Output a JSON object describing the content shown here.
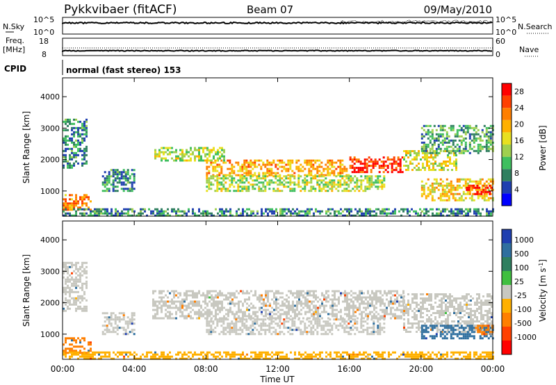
{
  "header": {
    "station": "Pykkvibaer (fitACF)",
    "beam": "Beam 07",
    "date": "09/May/2010"
  },
  "top_panels": {
    "nsky_label": "N.Sky",
    "nsky_ticks": [
      "10^5",
      "10^0"
    ],
    "nsearch_label": "N.Search",
    "nsearch_ticks": [
      "10^5",
      "10^0"
    ],
    "freq_label": "Freq.",
    "freq_unit": "[MHz]",
    "freq_ticks": [
      "18",
      "8"
    ],
    "nave_label": "Nave",
    "nave_ticks": [
      "60",
      "0"
    ],
    "cpid_label": "CPID",
    "cpid_text": "normal (fast stereo) 153"
  },
  "chart_data": [
    {
      "type": "heatmap",
      "name": "power-panel",
      "ylabel": "Slant Range [km]",
      "xlim": [
        "00:00",
        "24:00"
      ],
      "ylim": [
        200,
        4600
      ],
      "y_ticks": [
        "4000",
        "3000",
        "2000",
        "1000"
      ],
      "y_tick_values": [
        4000,
        3000,
        2000,
        1000
      ],
      "colorbar": {
        "label": "Power [dB]",
        "ticks": [
          "28",
          "24",
          "20",
          "16",
          "12",
          "8",
          "4"
        ],
        "tick_values": [
          28,
          24,
          20,
          16,
          12,
          8,
          4
        ],
        "range": [
          0,
          30
        ],
        "colors": [
          "#0000ff",
          "#1f3fb0",
          "#2f7f5f",
          "#3fbf5f",
          "#9fd04f",
          "#e8e020",
          "#ffb000",
          "#ff7f00",
          "#ff4000",
          "#ff0000"
        ]
      },
      "echo_bands": [
        {
          "t": [
            0.0,
            1.3
          ],
          "r": [
            1750,
            3300
          ],
          "power": 8
        },
        {
          "t": [
            0.0,
            1.6
          ],
          "r": [
            400,
            900
          ],
          "power": 22
        },
        {
          "t": [
            2.2,
            4.0
          ],
          "r": [
            1000,
            1700
          ],
          "power": 8
        },
        {
          "t": [
            5.0,
            9.0
          ],
          "r": [
            2000,
            2400
          ],
          "power": 14
        },
        {
          "t": [
            8.0,
            16.0
          ],
          "r": [
            1500,
            2000
          ],
          "power": 20
        },
        {
          "t": [
            16.0,
            19.0
          ],
          "r": [
            1600,
            2100
          ],
          "power": 26
        },
        {
          "t": [
            19.0,
            22.0
          ],
          "r": [
            1700,
            2300
          ],
          "power": 16
        },
        {
          "t": [
            8.0,
            18.0
          ],
          "r": [
            1000,
            1500
          ],
          "power": 14
        },
        {
          "t": [
            20.0,
            24.0
          ],
          "r": [
            700,
            1400
          ],
          "power": 18
        },
        {
          "t": [
            22.5,
            24.0
          ],
          "r": [
            900,
            1200
          ],
          "power": 28
        },
        {
          "t": [
            20.0,
            24.0
          ],
          "r": [
            2200,
            3100
          ],
          "power": 10
        },
        {
          "t": [
            0.0,
            24.0
          ],
          "r": [
            200,
            450
          ],
          "power": 8
        }
      ]
    },
    {
      "type": "heatmap",
      "name": "velocity-panel",
      "ylabel": "Slant Range [km]",
      "xlabel": "Time UT",
      "x_ticks": [
        "00:00",
        "04:00",
        "08:00",
        "12:00",
        "16:00",
        "20:00",
        "00:00"
      ],
      "x_tick_values": [
        0,
        4,
        8,
        12,
        16,
        20,
        24
      ],
      "xlim": [
        "00:00",
        "24:00"
      ],
      "ylim": [
        200,
        4600
      ],
      "y_ticks": [
        "4000",
        "3000",
        "2000",
        "1000"
      ],
      "y_tick_values": [
        4000,
        3000,
        2000,
        1000
      ],
      "colorbar": {
        "label": "Velocity [m s^-1]",
        "ticks": [
          "1000",
          "500",
          "100",
          "25",
          "-25",
          "-100",
          "-500",
          "-1000"
        ],
        "colors": [
          "#1f3fb0",
          "#2f6f9f",
          "#2f7f5f",
          "#3fbf3f",
          "#c8c8c0",
          "#ffb000",
          "#ff7f00",
          "#ff4000",
          "#ff0000"
        ]
      },
      "echo_bands": [
        {
          "t": [
            0.0,
            1.3
          ],
          "r": [
            1750,
            3300
          ],
          "velocity": 0
        },
        {
          "t": [
            0.0,
            1.6
          ],
          "r": [
            400,
            900
          ],
          "velocity": -150
        },
        {
          "t": [
            2.2,
            4.0
          ],
          "r": [
            1000,
            1700
          ],
          "velocity": 0
        },
        {
          "t": [
            5.0,
            19.0
          ],
          "r": [
            1500,
            2400
          ],
          "velocity": 0
        },
        {
          "t": [
            8.0,
            18.0
          ],
          "r": [
            1000,
            1500
          ],
          "velocity": 0
        },
        {
          "t": [
            19.0,
            24.0
          ],
          "r": [
            1100,
            2300
          ],
          "velocity": 0
        },
        {
          "t": [
            20.0,
            24.0
          ],
          "r": [
            900,
            1300
          ],
          "velocity": 300
        },
        {
          "t": [
            23.0,
            24.0
          ],
          "r": [
            1000,
            1300
          ],
          "velocity": -300
        },
        {
          "t": [
            0.0,
            24.0
          ],
          "r": [
            200,
            450
          ],
          "velocity": -50
        }
      ]
    }
  ]
}
